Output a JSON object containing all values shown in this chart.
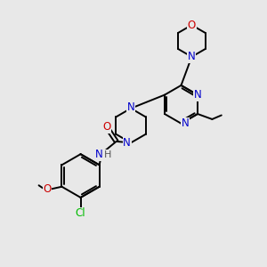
{
  "bg_color": "#e8e8e8",
  "bond_color": "#000000",
  "N_color": "#0000cc",
  "O_color": "#cc0000",
  "Cl_color": "#00bb00",
  "line_width": 1.4,
  "font_size": 8.5,
  "fig_size": [
    3.0,
    3.0
  ],
  "dpi": 100,
  "xlim": [
    0,
    10
  ],
  "ylim": [
    0,
    10
  ]
}
